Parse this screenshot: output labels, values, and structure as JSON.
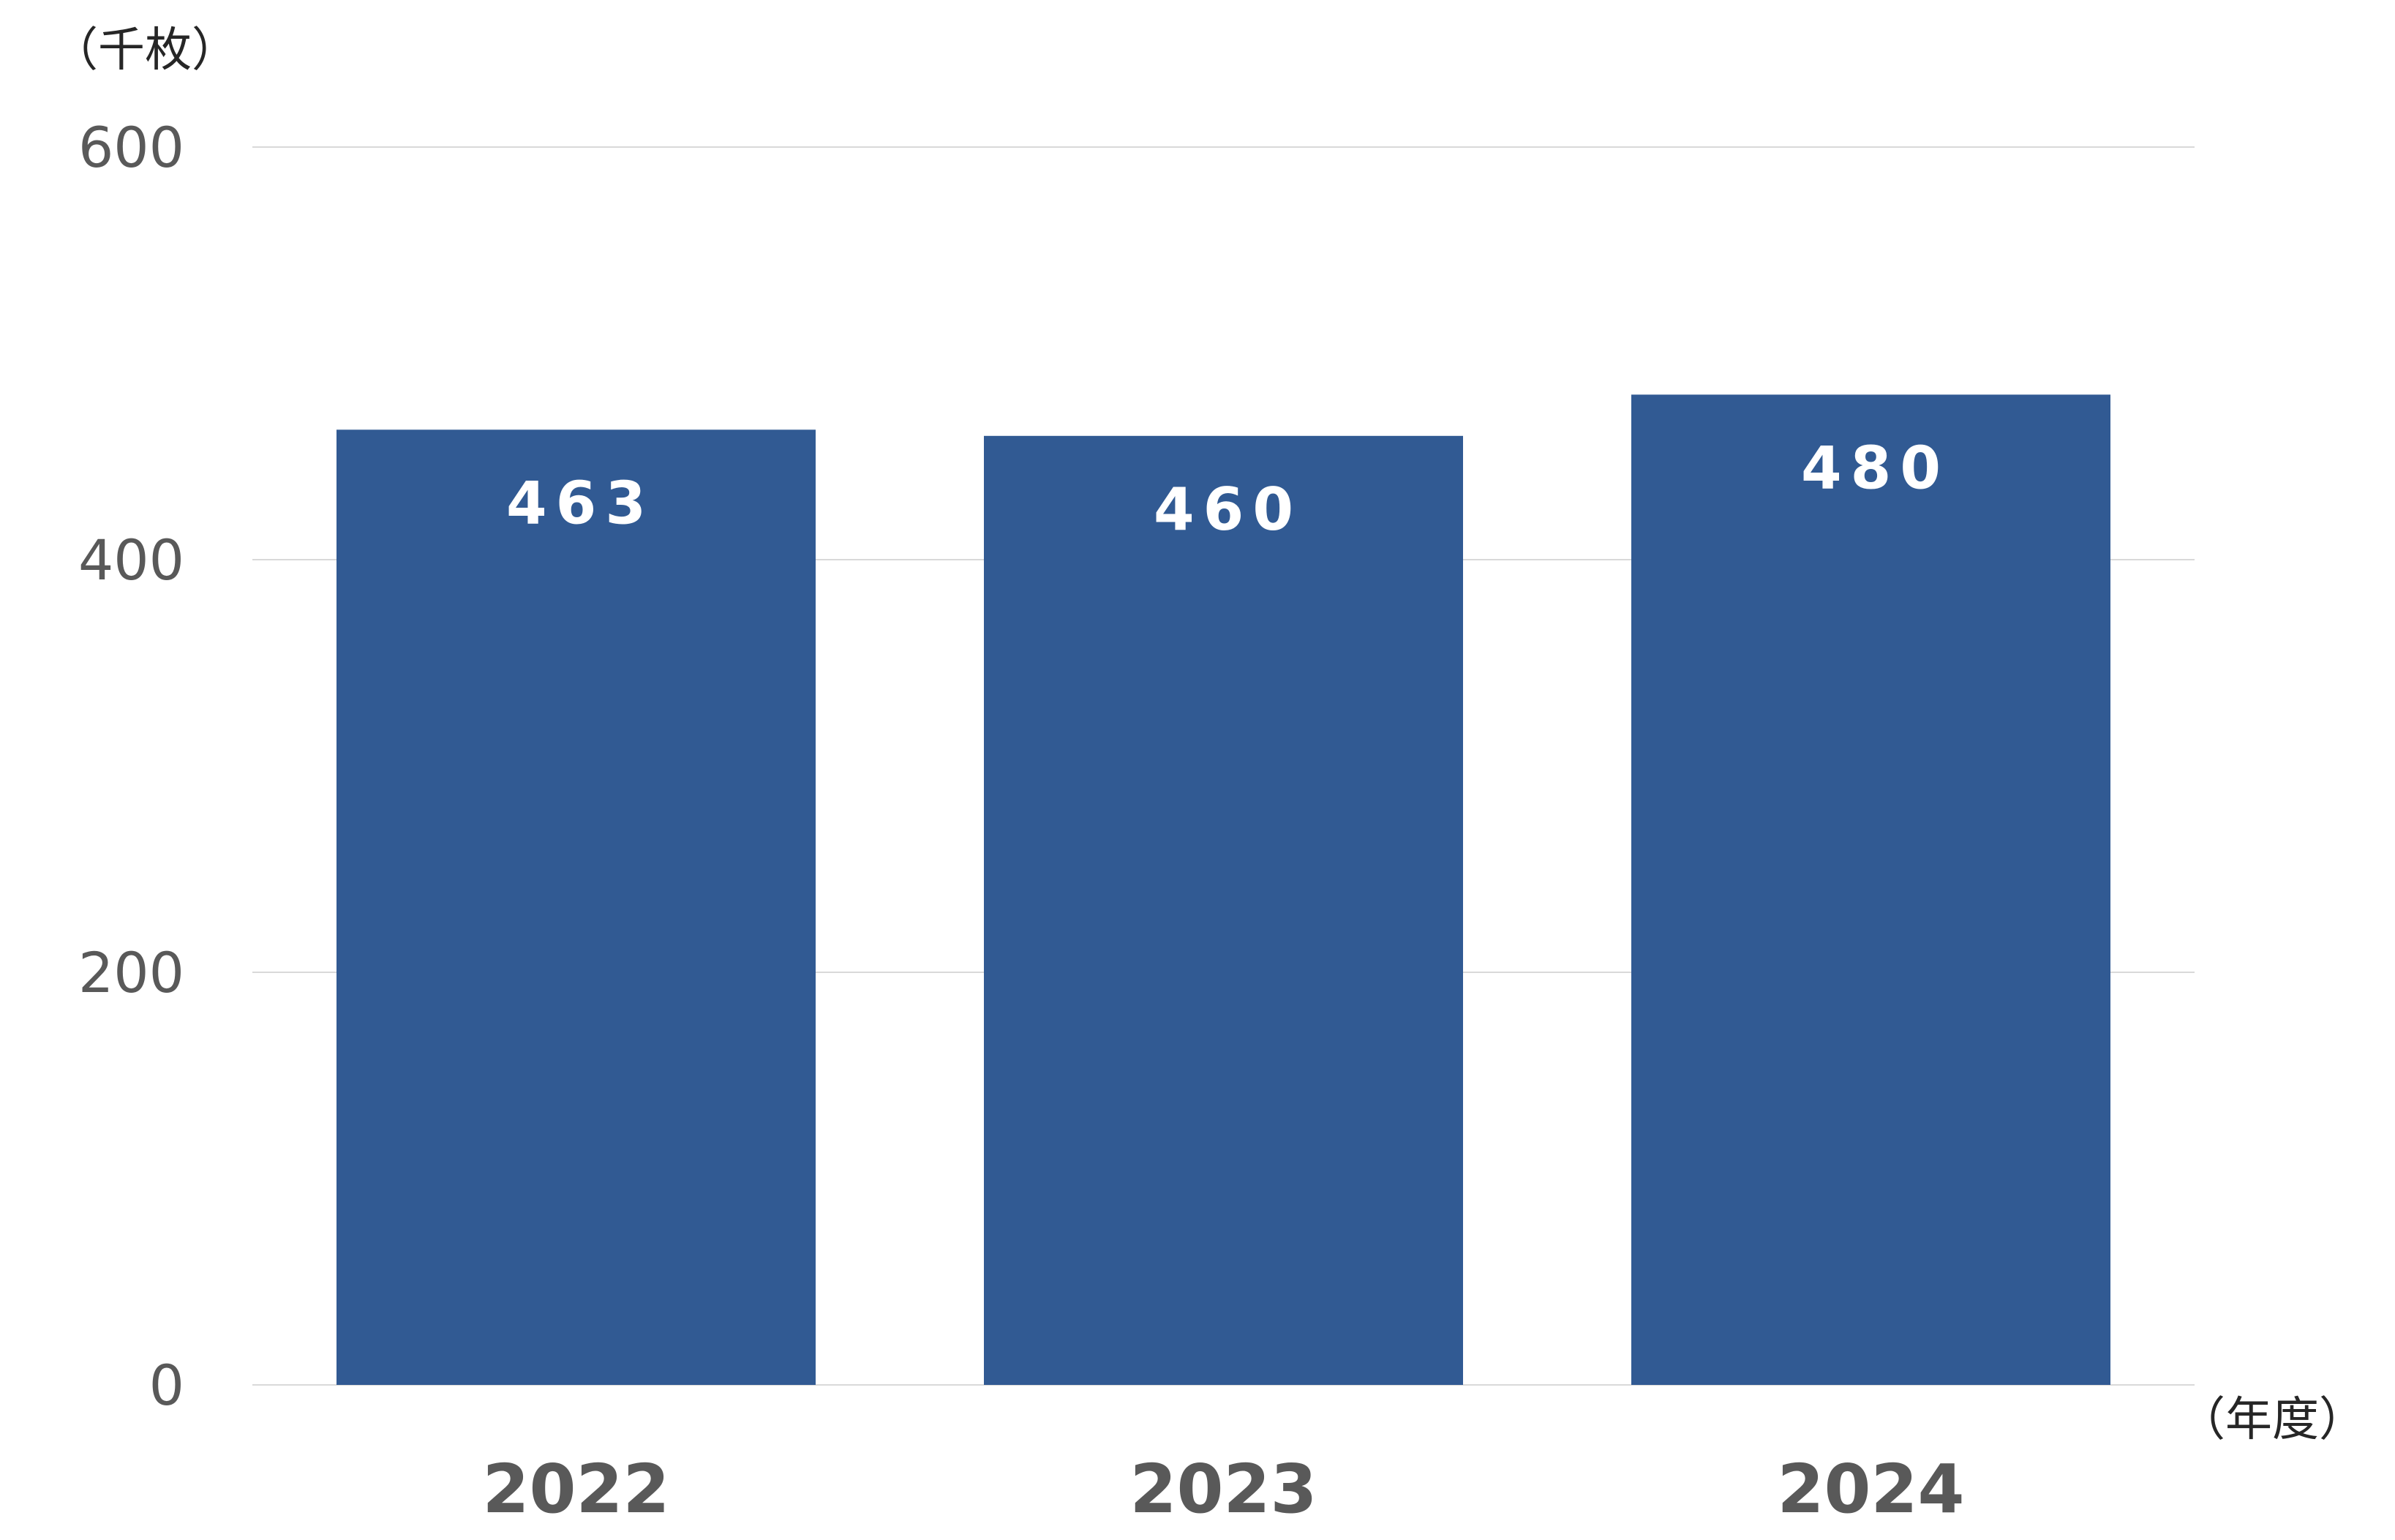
{
  "chart_data": {
    "type": "bar",
    "categories": [
      "2022",
      "2023",
      "2024"
    ],
    "values": [
      463,
      460,
      480
    ],
    "data_labels": [
      "463",
      "460",
      "480"
    ],
    "title": "",
    "ylabel": "（千枚）",
    "xlabel": "（年度）",
    "ylim": [
      0,
      600
    ],
    "yticks": [
      0,
      200,
      400,
      600
    ],
    "ytick_labels": [
      "0",
      "200",
      "400",
      "600"
    ],
    "grid": true,
    "legend": "none",
    "colors": {
      "bar": "#315a93",
      "data_label": "#ffffff",
      "tick": "#595959",
      "grid": "#d9d9d9"
    }
  }
}
